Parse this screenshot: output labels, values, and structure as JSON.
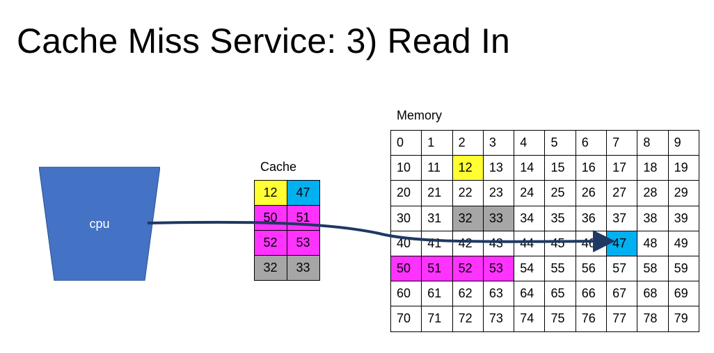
{
  "title": "Cache Miss Service: 3) Read In",
  "cpu": {
    "label": "cpu",
    "color": "#4472C4"
  },
  "cache": {
    "label": "Cache",
    "cells": [
      {
        "value": "12",
        "color": "#FFFF33"
      },
      {
        "value": "47",
        "color": "#00B0F0"
      },
      {
        "value": "50",
        "color": "#FF33FF"
      },
      {
        "value": "51",
        "color": "#FF33FF"
      },
      {
        "value": "52",
        "color": "#FF33FF"
      },
      {
        "value": "53",
        "color": "#FF33FF"
      },
      {
        "value": "32",
        "color": "#A6A6A6"
      },
      {
        "value": "33",
        "color": "#A6A6A6"
      }
    ]
  },
  "memory": {
    "label": "Memory",
    "rows": [
      [
        "0",
        "1",
        "2",
        "3",
        "4",
        "5",
        "6",
        "7",
        "8",
        "9"
      ],
      [
        "10",
        "11",
        "12",
        "13",
        "14",
        "15",
        "16",
        "17",
        "18",
        "19"
      ],
      [
        "20",
        "21",
        "22",
        "23",
        "24",
        "25",
        "26",
        "27",
        "28",
        "29"
      ],
      [
        "30",
        "31",
        "32",
        "33",
        "34",
        "35",
        "36",
        "37",
        "38",
        "39"
      ],
      [
        "40",
        "41",
        "42",
        "43",
        "44",
        "45",
        "46",
        "47",
        "48",
        "49"
      ],
      [
        "50",
        "51",
        "52",
        "53",
        "54",
        "55",
        "56",
        "57",
        "58",
        "59"
      ],
      [
        "60",
        "61",
        "62",
        "63",
        "64",
        "65",
        "66",
        "67",
        "68",
        "69"
      ],
      [
        "70",
        "71",
        "72",
        "73",
        "74",
        "75",
        "76",
        "77",
        "78",
        "79"
      ]
    ],
    "highlights": {
      "12": "#FFFF33",
      "32": "#A6A6A6",
      "33": "#A6A6A6",
      "47": "#00B0F0",
      "50": "#FF33FF",
      "51": "#FF33FF",
      "52": "#FF33FF",
      "53": "#FF33FF"
    }
  },
  "arrow": {
    "color": "#1F3864",
    "from": "cpu",
    "to": "47"
  }
}
